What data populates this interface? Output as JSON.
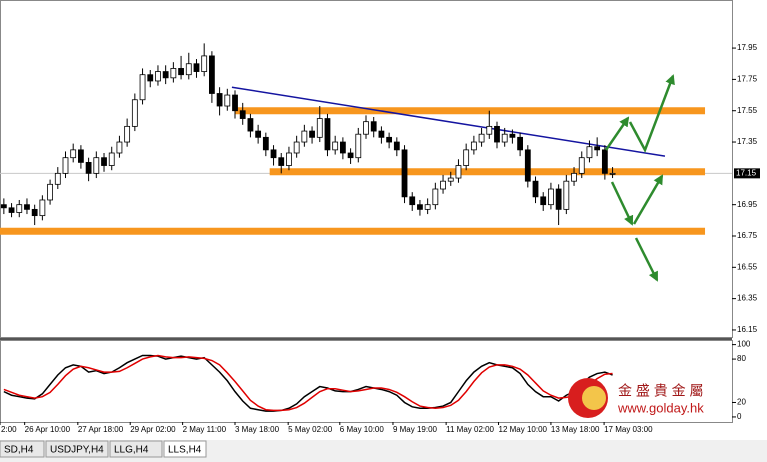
{
  "chart_data": {
    "type": "candlestick",
    "xlim": [
      -0.5,
      94.5
    ],
    "ylim": [
      16.105,
      18.257
    ],
    "yticks": [
      17.95,
      17.75,
      17.55,
      17.35,
      16.95,
      16.75,
      16.55,
      16.35,
      16.15
    ],
    "last_price": {
      "value": 17.15,
      "label": "17.15"
    },
    "xticks": [
      {
        "value": -0.5,
        "label": "2:00"
      },
      {
        "value": 2.7,
        "label": "26 Apr 10:00"
      },
      {
        "value": 9.6,
        "label": "27 Apr 18:00"
      },
      {
        "value": 16.4,
        "label": "29 Apr 02:00"
      },
      {
        "value": 23.2,
        "label": "2 May 11:00"
      },
      {
        "value": 30,
        "label": "3 May 18:00"
      },
      {
        "value": 36.9,
        "label": "5 May 02:00"
      },
      {
        "value": 43.6,
        "label": "6 May 10:00"
      },
      {
        "value": 50.5,
        "label": "9 May 19:00"
      },
      {
        "value": 57.4,
        "label": "11 May 02:00"
      },
      {
        "value": 64.2,
        "label": "12 May 10:00"
      },
      {
        "value": 71,
        "label": "13 May 18:00"
      },
      {
        "value": 77.9,
        "label": "17 May 03:00"
      }
    ],
    "candles": [
      [
        16.95,
        16.99,
        16.89,
        16.93
      ],
      [
        16.93,
        16.96,
        16.87,
        16.9
      ],
      [
        16.9,
        16.98,
        16.87,
        16.95
      ],
      [
        16.95,
        16.99,
        16.89,
        16.92
      ],
      [
        16.92,
        16.95,
        16.82,
        16.88
      ],
      [
        16.88,
        17.01,
        16.85,
        16.98
      ],
      [
        16.98,
        17.11,
        16.95,
        17.08
      ],
      [
        17.08,
        17.19,
        17.05,
        17.15
      ],
      [
        17.15,
        17.29,
        17.12,
        17.25
      ],
      [
        17.25,
        17.34,
        17.22,
        17.3
      ],
      [
        17.3,
        17.33,
        17.18,
        17.22
      ],
      [
        17.22,
        17.25,
        17.1,
        17.15
      ],
      [
        17.15,
        17.29,
        17.12,
        17.25
      ],
      [
        17.25,
        17.28,
        17.16,
        17.2
      ],
      [
        17.2,
        17.32,
        17.17,
        17.28
      ],
      [
        17.28,
        17.39,
        17.25,
        17.35
      ],
      [
        17.35,
        17.5,
        17.32,
        17.45
      ],
      [
        17.45,
        17.66,
        17.42,
        17.62
      ],
      [
        17.62,
        17.82,
        17.59,
        17.78
      ],
      [
        17.78,
        17.81,
        17.7,
        17.74
      ],
      [
        17.74,
        17.84,
        17.71,
        17.8
      ],
      [
        17.8,
        17.84,
        17.72,
        17.76
      ],
      [
        17.76,
        17.86,
        17.73,
        17.82
      ],
      [
        17.82,
        17.9,
        17.75,
        17.78
      ],
      [
        17.78,
        17.92,
        17.75,
        17.85
      ],
      [
        17.85,
        17.88,
        17.76,
        17.8
      ],
      [
        17.8,
        17.98,
        17.77,
        17.9
      ],
      [
        17.9,
        17.93,
        17.6,
        17.66
      ],
      [
        17.66,
        17.7,
        17.52,
        17.58
      ],
      [
        17.58,
        17.69,
        17.55,
        17.65
      ],
      [
        17.65,
        17.68,
        17.5,
        17.55
      ],
      [
        17.55,
        17.6,
        17.46,
        17.5
      ],
      [
        17.5,
        17.53,
        17.38,
        17.42
      ],
      [
        17.42,
        17.46,
        17.34,
        17.38
      ],
      [
        17.38,
        17.41,
        17.26,
        17.3
      ],
      [
        17.3,
        17.33,
        17.2,
        17.25
      ],
      [
        17.25,
        17.28,
        17.15,
        17.2
      ],
      [
        17.2,
        17.32,
        17.17,
        17.28
      ],
      [
        17.28,
        17.39,
        17.25,
        17.35
      ],
      [
        17.35,
        17.46,
        17.32,
        17.42
      ],
      [
        17.42,
        17.45,
        17.34,
        17.38
      ],
      [
        17.38,
        17.58,
        17.35,
        17.5
      ],
      [
        17.5,
        17.53,
        17.26,
        17.3
      ],
      [
        17.3,
        17.39,
        17.27,
        17.35
      ],
      [
        17.35,
        17.38,
        17.24,
        17.28
      ],
      [
        17.28,
        17.31,
        17.21,
        17.25
      ],
      [
        17.25,
        17.44,
        17.22,
        17.4
      ],
      [
        17.4,
        17.52,
        17.37,
        17.48
      ],
      [
        17.48,
        17.51,
        17.38,
        17.42
      ],
      [
        17.42,
        17.45,
        17.34,
        17.38
      ],
      [
        17.38,
        17.41,
        17.31,
        17.35
      ],
      [
        17.35,
        17.38,
        17.26,
        17.3
      ],
      [
        17.3,
        17.33,
        16.96,
        17.0
      ],
      [
        17.0,
        17.03,
        16.91,
        16.95
      ],
      [
        16.95,
        16.98,
        16.88,
        16.92
      ],
      [
        16.92,
        16.99,
        16.89,
        16.95
      ],
      [
        16.95,
        17.09,
        16.92,
        17.05
      ],
      [
        17.05,
        17.14,
        17.02,
        17.1
      ],
      [
        17.1,
        17.16,
        17.07,
        17.12
      ],
      [
        17.12,
        17.24,
        17.09,
        17.2
      ],
      [
        17.2,
        17.34,
        17.17,
        17.3
      ],
      [
        17.3,
        17.39,
        17.27,
        17.35
      ],
      [
        17.35,
        17.44,
        17.32,
        17.4
      ],
      [
        17.4,
        17.55,
        17.37,
        17.45
      ],
      [
        17.45,
        17.48,
        17.31,
        17.35
      ],
      [
        17.35,
        17.44,
        17.32,
        17.4
      ],
      [
        17.4,
        17.43,
        17.34,
        17.38
      ],
      [
        17.38,
        17.41,
        17.26,
        17.3
      ],
      [
        17.3,
        17.33,
        17.06,
        17.1
      ],
      [
        17.1,
        17.13,
        16.96,
        17.0
      ],
      [
        17.0,
        17.03,
        16.91,
        16.95
      ],
      [
        16.95,
        17.09,
        16.92,
        17.05
      ],
      [
        17.05,
        17.08,
        16.82,
        16.92
      ],
      [
        16.92,
        17.14,
        16.89,
        17.1
      ],
      [
        17.1,
        17.19,
        17.07,
        17.15
      ],
      [
        17.15,
        17.29,
        17.12,
        17.25
      ],
      [
        17.25,
        17.36,
        17.22,
        17.32
      ],
      [
        17.32,
        17.38,
        17.26,
        17.3
      ],
      [
        17.3,
        17.33,
        17.11,
        17.15
      ],
      [
        17.15,
        17.19,
        17.12,
        17.15
      ]
    ],
    "levels": [
      {
        "y": 17.55,
        "x": [
          30,
          91
        ]
      },
      {
        "y": 17.16,
        "x": [
          34.5,
          91
        ]
      },
      {
        "y": 16.78,
        "x": [
          -0.5,
          91
        ]
      }
    ],
    "level_color": "#f7961e",
    "trendline": {
      "x": [
        29.6,
        85.8
      ],
      "y": [
        17.7,
        17.26
      ],
      "color": "#1414a0"
    },
    "oscillator": {
      "ylim": [
        -7,
        105
      ],
      "yticks": [
        100,
        80,
        20,
        0
      ],
      "series": [
        {
          "color": "#000000",
          "values": [
            35,
            30,
            28,
            26,
            25,
            32,
            45,
            58,
            68,
            72,
            70,
            62,
            64,
            60,
            62,
            68,
            75,
            80,
            85,
            85,
            84,
            80,
            82,
            84,
            82,
            80,
            82,
            72,
            62,
            50,
            35,
            22,
            12,
            10,
            8,
            8,
            9,
            12,
            18,
            28,
            35,
            42,
            40,
            36,
            35,
            35,
            38,
            42,
            40,
            38,
            35,
            30,
            20,
            14,
            12,
            12,
            13,
            15,
            20,
            35,
            50,
            62,
            70,
            75,
            72,
            70,
            68,
            60,
            45,
            35,
            28,
            28,
            22,
            30,
            35,
            45,
            55,
            60,
            62,
            58
          ]
        },
        {
          "color": "#e00000",
          "values": [
            38,
            34,
            30,
            28,
            26,
            28,
            34,
            45,
            57,
            66,
            70,
            68,
            65,
            62,
            62,
            63,
            68,
            74,
            80,
            83,
            85,
            83,
            82,
            82,
            83,
            82,
            81,
            78,
            72,
            61,
            49,
            36,
            23,
            15,
            10,
            9,
            9,
            10,
            13,
            19,
            27,
            35,
            39,
            39,
            37,
            35,
            36,
            38,
            40,
            40,
            38,
            34,
            28,
            21,
            15,
            13,
            12,
            13,
            16,
            23,
            35,
            49,
            61,
            69,
            72,
            72,
            70,
            66,
            58,
            47,
            36,
            30,
            26,
            27,
            29,
            36,
            45,
            53,
            59,
            60
          ]
        }
      ]
    },
    "tabs": [
      "SD,H4",
      "USDJPY,H4",
      "LLG,H4",
      "LLS,H4"
    ],
    "logo": {
      "name": "金 盛 貴 金 屬",
      "url": "www.golday.hk"
    }
  }
}
